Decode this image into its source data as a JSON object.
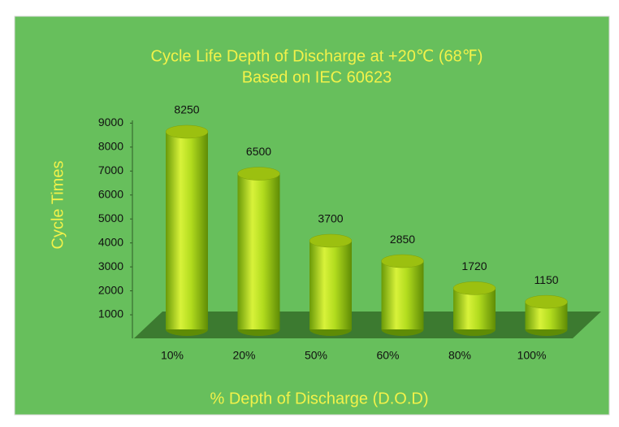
{
  "chart_data": {
    "type": "bar",
    "title": "Cycle Life Depth of Discharge at +20℃ (68℉)",
    "subtitle": "Based on IEC 60623",
    "y_label": "Cycle Times",
    "x_label": "% Depth of Discharge (D.O.D)",
    "categories": [
      "10%",
      "20%",
      "50%",
      "60%",
      "80%",
      "100%"
    ],
    "values": [
      8250,
      6500,
      3700,
      2850,
      1720,
      1150
    ],
    "color": "#a8d81c",
    "ylim": [
      0,
      9000
    ],
    "yticks": [
      1000,
      2000,
      3000,
      4000,
      5000,
      6000,
      7000,
      8000,
      9000
    ]
  }
}
